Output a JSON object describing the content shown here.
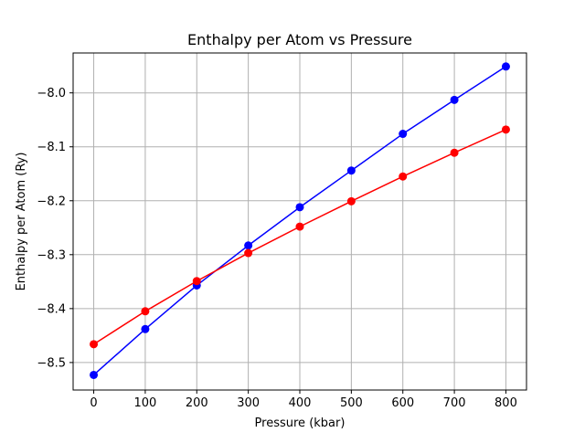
{
  "chart_data": {
    "type": "line",
    "title": "Enthalpy per Atom vs Pressure",
    "xlabel": "Pressure (kbar)",
    "ylabel": "Enthalpy per Atom (Ry)",
    "x": [
      0,
      100,
      200,
      300,
      400,
      500,
      600,
      700,
      800
    ],
    "xlim": [
      -40,
      840
    ],
    "ylim": [
      -8.551,
      -7.926
    ],
    "xticks": [
      0,
      100,
      200,
      300,
      400,
      500,
      600,
      700,
      800
    ],
    "xtick_labels": [
      "0",
      "100",
      "200",
      "300",
      "400",
      "500",
      "600",
      "700",
      "800"
    ],
    "yticks": [
      -8.5,
      -8.4,
      -8.3,
      -8.2,
      -8.1,
      -8.0
    ],
    "ytick_labels": [
      "−8.5",
      "−8.4",
      "−8.3",
      "−8.2",
      "−8.1",
      "−8.0"
    ],
    "grid": true,
    "series": [
      {
        "color": "#0000ff",
        "marker": "circle",
        "values": [
          -8.523,
          -8.438,
          -8.357,
          -8.283,
          -8.212,
          -8.144,
          -8.076,
          -8.013,
          -7.951
        ]
      },
      {
        "color": "#ff0000",
        "marker": "circle",
        "values": [
          -8.466,
          -8.405,
          -8.349,
          -8.297,
          -8.248,
          -8.201,
          -8.155,
          -8.111,
          -8.068
        ]
      }
    ]
  }
}
